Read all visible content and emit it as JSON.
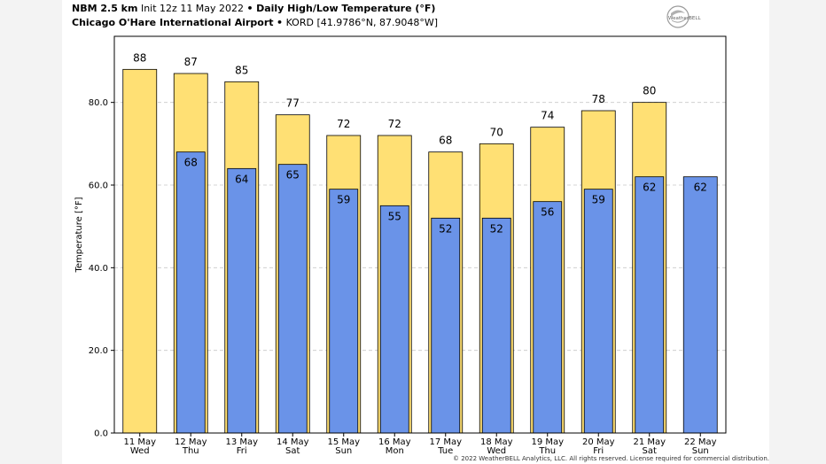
{
  "header": {
    "line1_model": "NBM 2.5 km",
    "line1_init": "Init 12z 11 May 2022",
    "line1_bullet": "•",
    "line1_title": "Daily High/Low Temperature (°F)",
    "line2_station": "Chicago O'Hare International Airport",
    "line2_bullet": "•",
    "line2_coords": "KORD [41.9786°N, 87.9048°W]"
  },
  "logo_text": "WeatherBELL",
  "copyright": "© 2022 WeatherBELL Analytics, LLC. All rights reserved. License required for commercial distribution.",
  "colors": {
    "high_bar": "#ffe074",
    "low_bar": "#6a93e8",
    "grid": "#c8c8c8"
  },
  "chart_data": {
    "type": "bar",
    "title": "Daily High/Low Temperature (°F)",
    "ylabel": "Temperature [°F]",
    "xlabel": "",
    "ylim": [
      0,
      96
    ],
    "yticks": [
      "0.0",
      "20.0",
      "40.0",
      "60.0",
      "80.0"
    ],
    "ytick_values": [
      0,
      20,
      40,
      60,
      80
    ],
    "grid": true,
    "categories": [
      [
        "11 May",
        "Wed"
      ],
      [
        "12 May",
        "Thu"
      ],
      [
        "13 May",
        "Fri"
      ],
      [
        "14 May",
        "Sat"
      ],
      [
        "15 May",
        "Sun"
      ],
      [
        "16 May",
        "Mon"
      ],
      [
        "17 May",
        "Tue"
      ],
      [
        "18 May",
        "Wed"
      ],
      [
        "19 May",
        "Thu"
      ],
      [
        "20 May",
        "Fri"
      ],
      [
        "21 May",
        "Sat"
      ],
      [
        "22 May",
        "Sun"
      ]
    ],
    "series": [
      {
        "values": [
          88,
          87,
          85,
          77,
          72,
          72,
          68,
          70,
          74,
          78,
          80,
          null
        ]
      },
      {
        "values": [
          null,
          68,
          64,
          65,
          59,
          55,
          52,
          52,
          56,
          59,
          62,
          62
        ]
      }
    ]
  }
}
